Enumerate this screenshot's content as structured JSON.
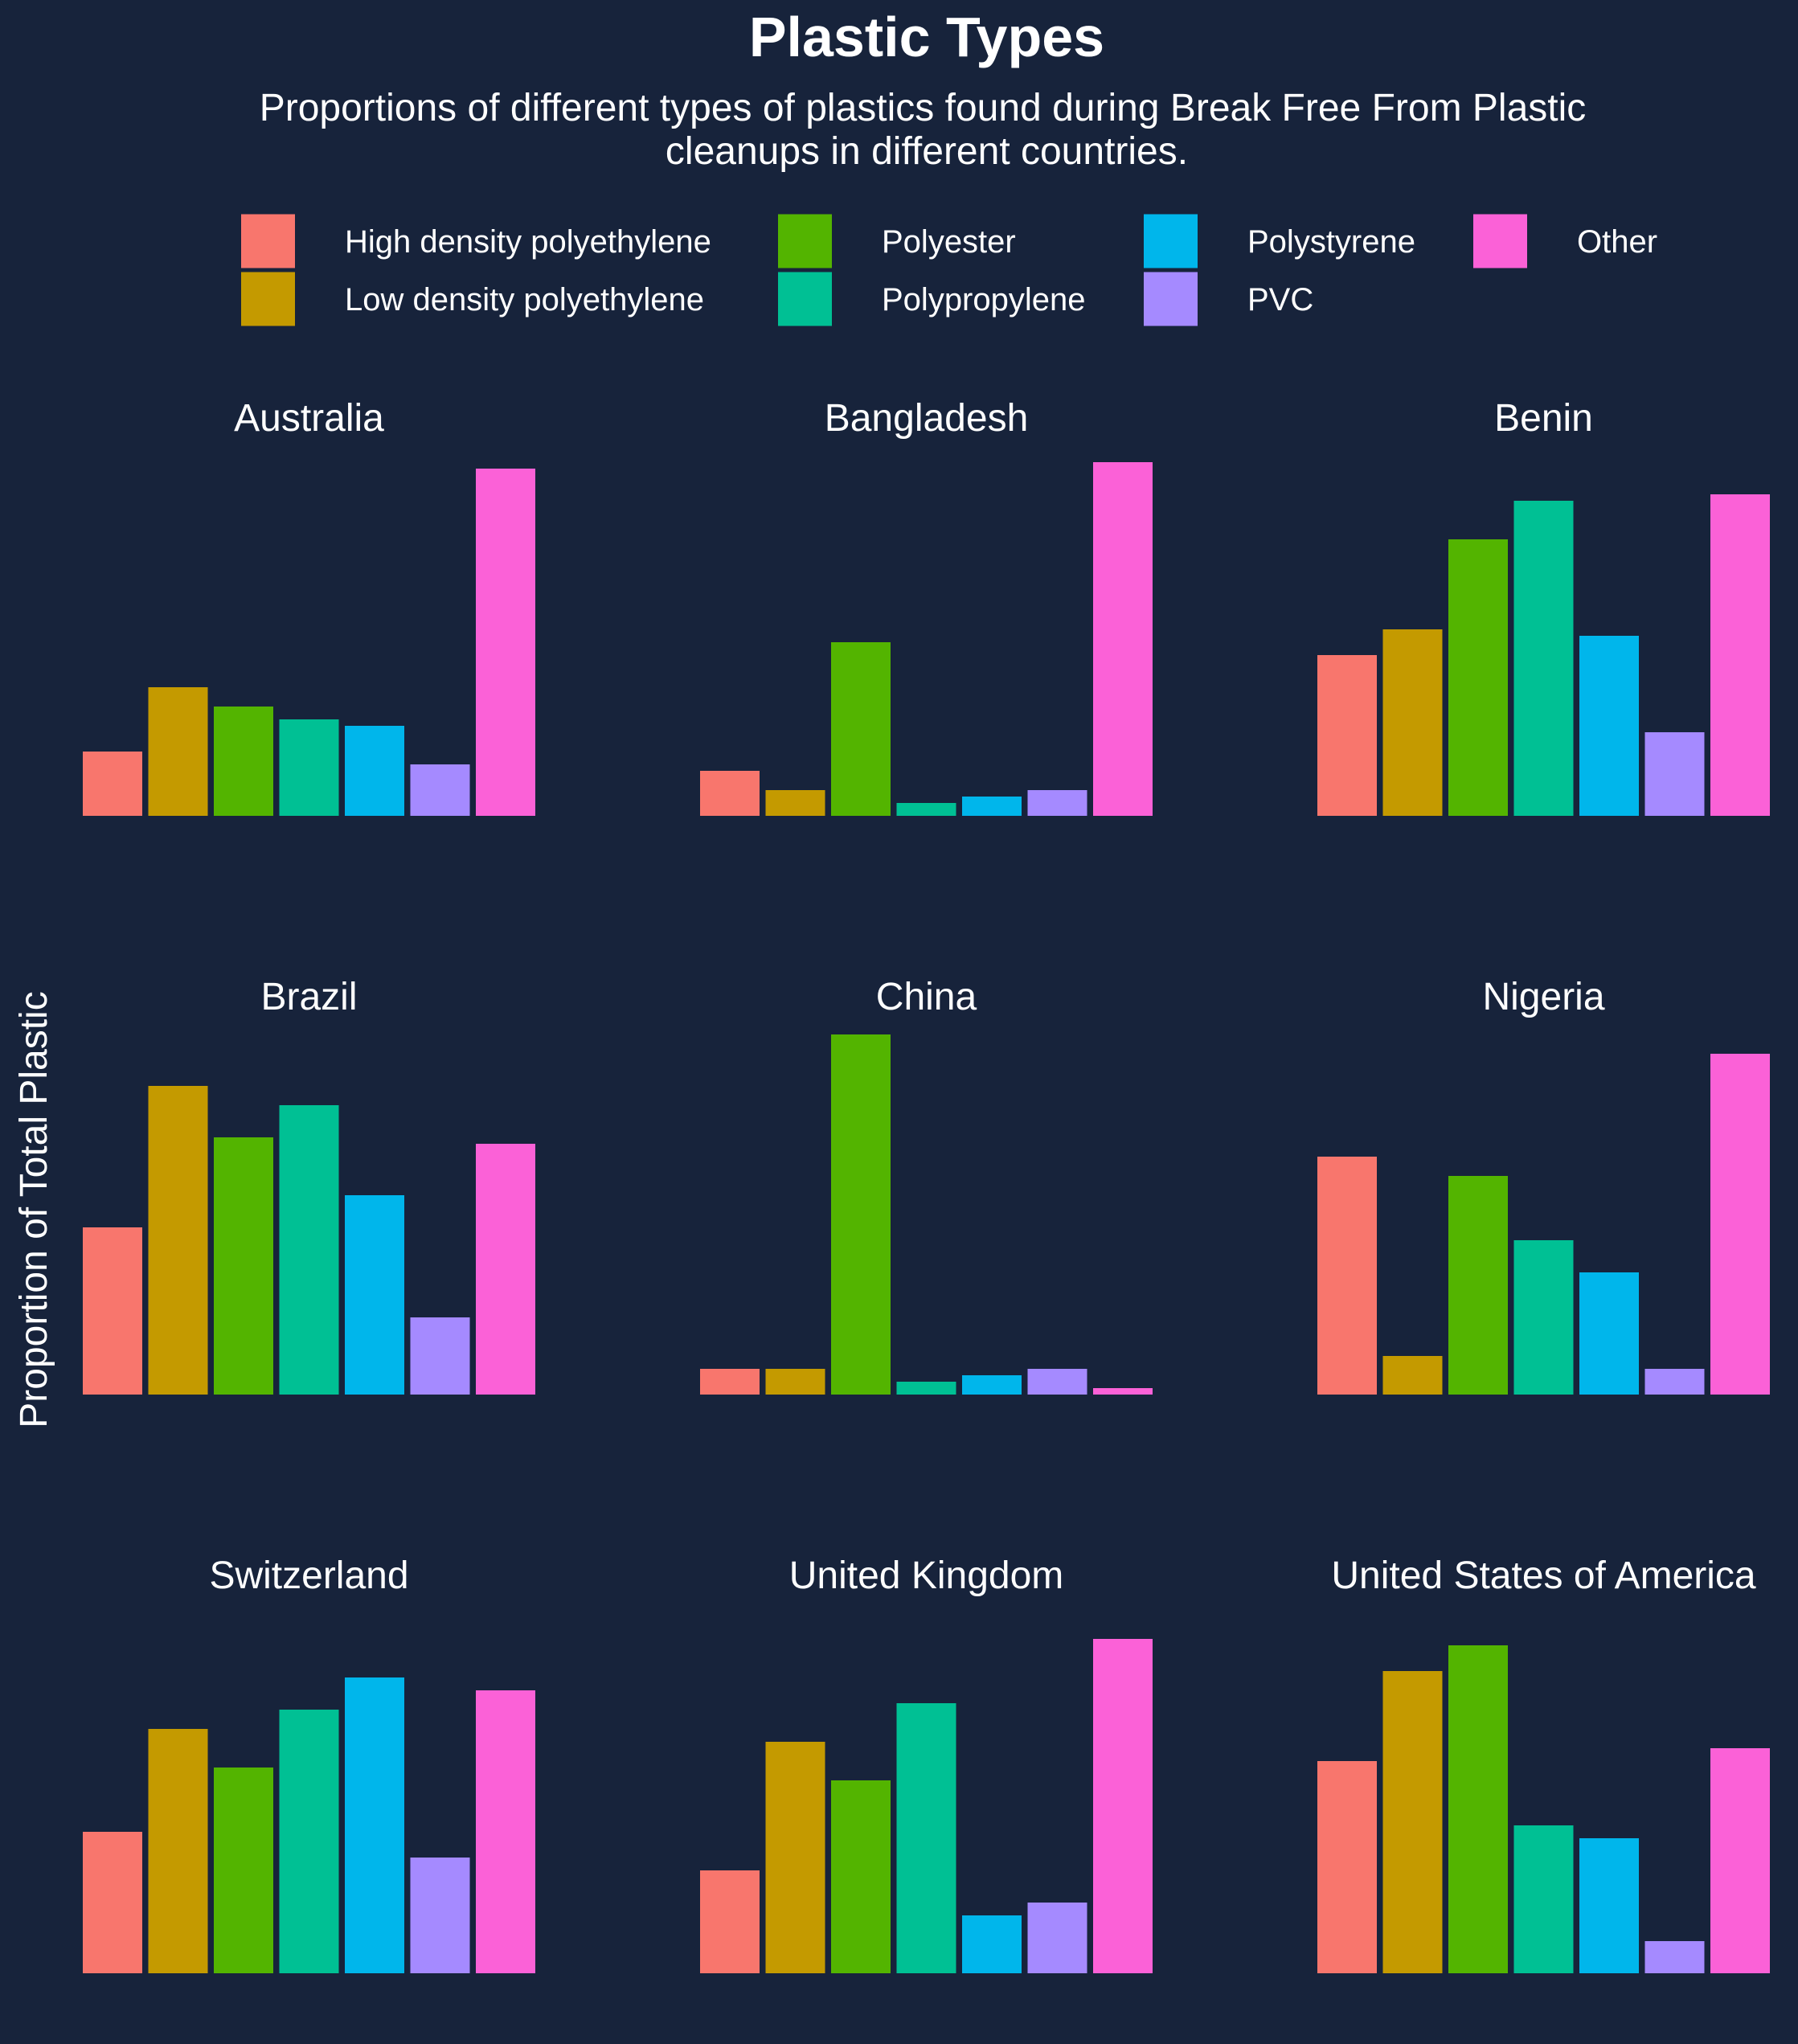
{
  "chart_data": {
    "type": "bar",
    "layout": "facet-grid",
    "title": "Plastic Types",
    "subtitle_lines": [
      "Proportions of different types of plastics found during Break Free From Plastic",
      "cleanups in different countries."
    ],
    "ylabel": "Proportion of Total Plastic",
    "xlabel": "",
    "grid": false,
    "legend_position": "top",
    "categories": [
      "High density polyethylene",
      "Low density polyethylene",
      "Polyester",
      "Polypropylene",
      "Polystyrene",
      "PVC",
      "Other"
    ],
    "colors": {
      "background": "#17233b",
      "text": "#ffffff",
      "series": [
        "#f8766d",
        "#c49a00",
        "#53b400",
        "#00c094",
        "#00b6eb",
        "#a58aff",
        "#fb61d7"
      ]
    },
    "facets": [
      {
        "name": "Australia",
        "values": [
          10,
          20,
          17,
          15,
          14,
          8,
          54
        ]
      },
      {
        "name": "Bangladesh",
        "values": [
          7,
          4,
          27,
          2,
          3,
          4,
          55
        ]
      },
      {
        "name": "Benin",
        "values": [
          25,
          29,
          43,
          49,
          28,
          13,
          50
        ]
      },
      {
        "name": "Brazil",
        "values": [
          26,
          48,
          40,
          45,
          31,
          12,
          39
        ]
      },
      {
        "name": "China",
        "values": [
          4,
          4,
          56,
          2,
          3,
          4,
          1
        ]
      },
      {
        "name": "Nigeria",
        "values": [
          37,
          6,
          34,
          24,
          19,
          4,
          53
        ]
      },
      {
        "name": "Switzerland",
        "values": [
          22,
          38,
          32,
          41,
          46,
          18,
          44
        ]
      },
      {
        "name": "United Kingdom",
        "values": [
          16,
          36,
          30,
          42,
          9,
          11,
          52
        ]
      },
      {
        "name": "United States of America",
        "values": [
          33,
          47,
          51,
          23,
          21,
          5,
          35
        ]
      }
    ]
  }
}
